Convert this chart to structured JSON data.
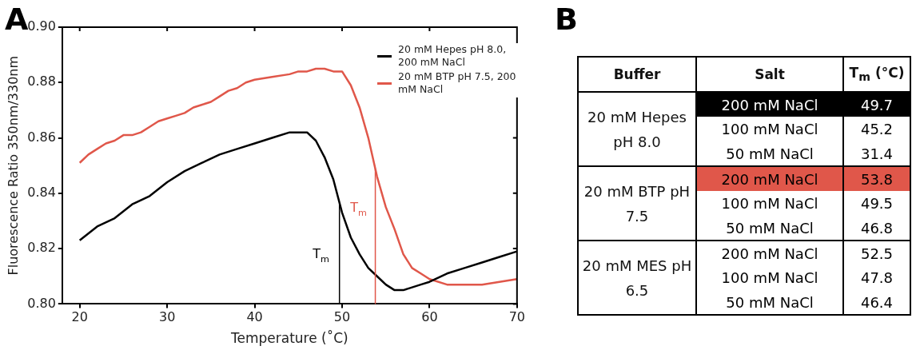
{
  "chart_data": [
    {
      "type": "line",
      "title": "A",
      "xlabel": "Temperature (˚C)",
      "ylabel": "Fluorescence Ratio 350nm/330nm",
      "xlim": [
        18,
        70
      ],
      "xticks": [
        20,
        30,
        40,
        50,
        60,
        70
      ],
      "ylim": [
        0.8,
        0.9
      ],
      "yticks": [
        {
          "value": 0.8,
          "label": "0.80"
        },
        {
          "value": 0.82,
          "label": "0.82"
        },
        {
          "value": 0.84,
          "label": "0.84"
        },
        {
          "value": 0.86,
          "label": "0.86"
        },
        {
          "value": 0.88,
          "label": "0.88"
        },
        {
          "value": 0.9,
          "label": "0.90"
        }
      ],
      "grid": false,
      "legend": "top right",
      "marker": "none",
      "line_style": "solid",
      "series": [
        {
          "name": "20 mM Hepes pH 8.0, 200 mM NaCl",
          "color": "#000000",
          "x": [
            20,
            22,
            24,
            26,
            28,
            30,
            32,
            34,
            36,
            38,
            40,
            42,
            44,
            45,
            46,
            47,
            48,
            49,
            50,
            51,
            52,
            53,
            54,
            55,
            56,
            57,
            58,
            59,
            60,
            62,
            64,
            66,
            68,
            70
          ],
          "values": [
            0.823,
            0.828,
            0.831,
            0.836,
            0.839,
            0.844,
            0.848,
            0.851,
            0.854,
            0.856,
            0.858,
            0.86,
            0.862,
            0.862,
            0.862,
            0.859,
            0.853,
            0.845,
            0.833,
            0.824,
            0.818,
            0.813,
            0.81,
            0.807,
            0.805,
            0.805,
            0.806,
            0.807,
            0.808,
            0.811,
            0.813,
            0.815,
            0.817,
            0.819
          ]
        },
        {
          "name": "20 mM BTP pH 7.5, 200 mM NaCl",
          "color": "#e0574a",
          "x": [
            20,
            21,
            22,
            23,
            24,
            25,
            26,
            27,
            28,
            29,
            30,
            31,
            32,
            33,
            34,
            35,
            36,
            37,
            38,
            39,
            40,
            42,
            44,
            45,
            46,
            47,
            48,
            49,
            50,
            51,
            52,
            53,
            54,
            55,
            56,
            57,
            58,
            59,
            60,
            62,
            64,
            66,
            68,
            70
          ],
          "values": [
            0.851,
            0.854,
            0.856,
            0.858,
            0.859,
            0.861,
            0.861,
            0.862,
            0.864,
            0.866,
            0.867,
            0.868,
            0.869,
            0.871,
            0.872,
            0.873,
            0.875,
            0.877,
            0.878,
            0.88,
            0.881,
            0.882,
            0.883,
            0.884,
            0.884,
            0.885,
            0.885,
            0.884,
            0.884,
            0.879,
            0.871,
            0.86,
            0.846,
            0.835,
            0.827,
            0.818,
            0.813,
            0.811,
            0.809,
            0.807,
            0.807,
            0.807,
            0.808,
            0.809
          ]
        }
      ],
      "ref_lines": [
        {
          "axis": "x",
          "value": 49.7,
          "label": "T$_{m}$",
          "color": "#000000"
        },
        {
          "axis": "x",
          "value": 53.8,
          "label": "T$_{m}$",
          "color": "#e0574a"
        }
      ]
    },
    {
      "type": "other",
      "title": "B",
      "categories": [
        "200 mM NaCl",
        "100 mM NaCl",
        "50 mM NaCl",
        "200 mM NaCl",
        "100 mM NaCl",
        "50 mM NaCl",
        "200 mM NaCl",
        "100 mM NaCl",
        "50 mM NaCl"
      ],
      "values": [
        49.7,
        45.2,
        31.4,
        53.8,
        49.5,
        46.8,
        52.5,
        47.8,
        46.4
      ],
      "data_labels": true,
      "colors": [
        "#000000",
        "#ffffff",
        "#ffffff",
        "#e0574a",
        "#ffffff",
        "#ffffff",
        "#ffffff",
        "#ffffff",
        "#ffffff"
      ],
      "annotations": [
        "Buffer",
        "Salt",
        "T$_{m}$ (°C)",
        "20 mM Hepes pH 8.0",
        "20 mM BTP pH 7.5",
        "20 mM MES pH 6.5"
      ]
    }
  ]
}
